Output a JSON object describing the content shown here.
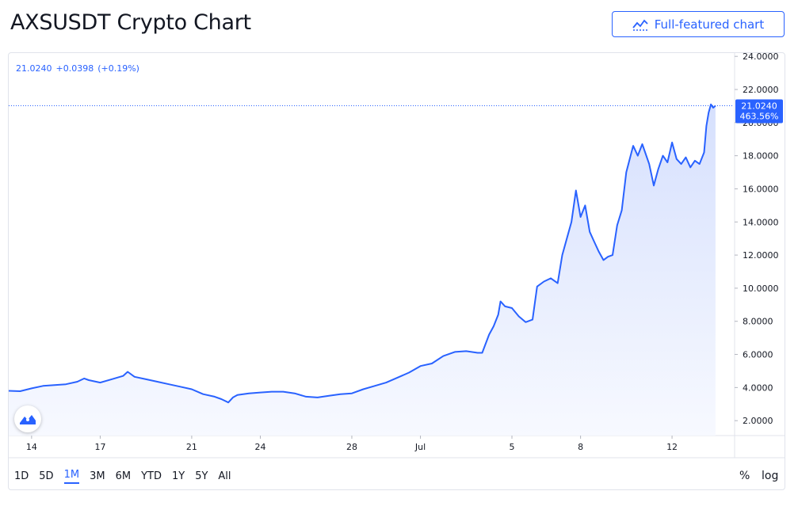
{
  "header": {
    "title": "AXSUSDT Crypto Chart",
    "full_chart_button": "Full-featured chart"
  },
  "legend": {
    "price": "21.0240",
    "change": "+0.0398",
    "change_pct": "(+0.19%)"
  },
  "price_tag": {
    "price": "21.0240",
    "percent": "463.56%"
  },
  "range_buttons": [
    "1D",
    "5D",
    "1M",
    "3M",
    "6M",
    "YTD",
    "1Y",
    "5Y",
    "All"
  ],
  "active_range": "1M",
  "scale_options": {
    "percent": "%",
    "log": "log"
  },
  "colors": {
    "line": "#2962ff",
    "fill_top": "#d6e0fd",
    "fill_bottom": "#f7f9ff",
    "tag": "#2962ff"
  },
  "icons": {
    "full_chart": "chart-line-icon",
    "logo": "tradingview-logo-icon"
  },
  "chart_data": {
    "type": "area",
    "title": "AXSUSDT",
    "y_ticks": [
      "24.0000",
      "22.0000",
      "20.0000",
      "18.0000",
      "16.0000",
      "14.0000",
      "12.0000",
      "10.0000",
      "8.0000",
      "6.0000",
      "4.0000",
      "2.0000"
    ],
    "x_ticks": [
      {
        "label": "14",
        "day": 14
      },
      {
        "label": "17",
        "day": 17
      },
      {
        "label": "21",
        "day": 21
      },
      {
        "label": "24",
        "day": 24
      },
      {
        "label": "28",
        "day": 28
      },
      {
        "label": "Jul",
        "day": 31
      },
      {
        "label": "5",
        "day": 35
      },
      {
        "label": "8",
        "day": 38
      },
      {
        "label": "12",
        "day": 42
      }
    ],
    "ylim": [
      1.1,
      24.2
    ],
    "xlim": [
      13.0,
      44.7
    ],
    "grid": false,
    "series": [
      {
        "points": [
          [
            13.0,
            3.8
          ],
          [
            13.5,
            3.78
          ],
          [
            14.0,
            3.95
          ],
          [
            14.5,
            4.1
          ],
          [
            15.0,
            4.15
          ],
          [
            15.5,
            4.2
          ],
          [
            16.0,
            4.35
          ],
          [
            16.3,
            4.55
          ],
          [
            16.5,
            4.45
          ],
          [
            17.0,
            4.3
          ],
          [
            17.5,
            4.5
          ],
          [
            18.0,
            4.7
          ],
          [
            18.2,
            4.95
          ],
          [
            18.5,
            4.65
          ],
          [
            19.0,
            4.5
          ],
          [
            19.5,
            4.35
          ],
          [
            20.0,
            4.2
          ],
          [
            20.5,
            4.05
          ],
          [
            21.0,
            3.9
          ],
          [
            21.5,
            3.6
          ],
          [
            22.0,
            3.45
          ],
          [
            22.3,
            3.3
          ],
          [
            22.6,
            3.1
          ],
          [
            22.8,
            3.4
          ],
          [
            23.0,
            3.55
          ],
          [
            23.5,
            3.65
          ],
          [
            24.0,
            3.7
          ],
          [
            24.5,
            3.75
          ],
          [
            25.0,
            3.75
          ],
          [
            25.5,
            3.65
          ],
          [
            26.0,
            3.45
          ],
          [
            26.5,
            3.4
          ],
          [
            27.0,
            3.5
          ],
          [
            27.5,
            3.6
          ],
          [
            28.0,
            3.65
          ],
          [
            28.5,
            3.9
          ],
          [
            29.0,
            4.1
          ],
          [
            29.5,
            4.3
          ],
          [
            30.0,
            4.6
          ],
          [
            30.5,
            4.9
          ],
          [
            31.0,
            5.3
          ],
          [
            31.5,
            5.45
          ],
          [
            32.0,
            5.9
          ],
          [
            32.5,
            6.15
          ],
          [
            33.0,
            6.2
          ],
          [
            33.5,
            6.1
          ],
          [
            33.7,
            6.1
          ],
          [
            34.0,
            7.2
          ],
          [
            34.2,
            7.7
          ],
          [
            34.4,
            8.4
          ],
          [
            34.5,
            9.2
          ],
          [
            34.7,
            8.9
          ],
          [
            35.0,
            8.8
          ],
          [
            35.3,
            8.3
          ],
          [
            35.6,
            7.95
          ],
          [
            35.9,
            8.1
          ],
          [
            36.1,
            10.1
          ],
          [
            36.4,
            10.4
          ],
          [
            36.7,
            10.6
          ],
          [
            37.0,
            10.3
          ],
          [
            37.2,
            12.0
          ],
          [
            37.4,
            13.0
          ],
          [
            37.6,
            14.0
          ],
          [
            37.8,
            15.9
          ],
          [
            38.0,
            14.3
          ],
          [
            38.2,
            15.0
          ],
          [
            38.4,
            13.4
          ],
          [
            38.6,
            12.8
          ],
          [
            38.8,
            12.2
          ],
          [
            39.0,
            11.7
          ],
          [
            39.2,
            11.9
          ],
          [
            39.4,
            12.0
          ],
          [
            39.6,
            13.8
          ],
          [
            39.8,
            14.7
          ],
          [
            40.0,
            17.0
          ],
          [
            40.3,
            18.6
          ],
          [
            40.5,
            18.0
          ],
          [
            40.7,
            18.7
          ],
          [
            41.0,
            17.5
          ],
          [
            41.2,
            16.2
          ],
          [
            41.4,
            17.2
          ],
          [
            41.6,
            18.0
          ],
          [
            41.8,
            17.6
          ],
          [
            42.0,
            18.8
          ],
          [
            42.2,
            17.8
          ],
          [
            42.4,
            17.5
          ],
          [
            42.6,
            17.9
          ],
          [
            42.8,
            17.3
          ],
          [
            43.0,
            17.7
          ],
          [
            43.2,
            17.5
          ],
          [
            43.4,
            18.2
          ],
          [
            43.5,
            19.8
          ],
          [
            43.6,
            20.6
          ],
          [
            43.7,
            21.1
          ],
          [
            43.8,
            20.9
          ],
          [
            43.9,
            21.02
          ]
        ]
      }
    ]
  }
}
